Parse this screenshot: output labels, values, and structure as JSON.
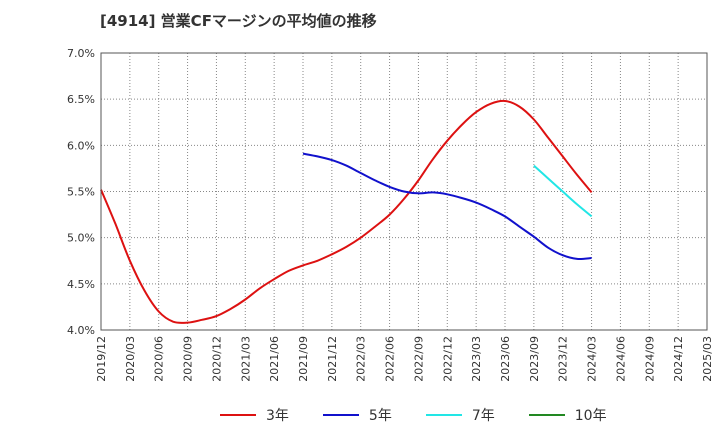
{
  "chart_data": {
    "type": "line",
    "title": "[4914]  営業CFマージンの平均値の推移",
    "x": [
      "2019/12",
      "2020/03",
      "2020/06",
      "2020/09",
      "2020/12",
      "2021/03",
      "2021/06",
      "2021/09",
      "2021/12",
      "2022/03",
      "2022/06",
      "2022/09",
      "2022/12",
      "2023/03",
      "2023/06",
      "2023/09",
      "2023/12",
      "2024/03",
      "2024/06",
      "2024/09",
      "2024/12",
      "2025/03"
    ],
    "y_ticks": [
      "4.0%",
      "4.5%",
      "5.0%",
      "5.5%",
      "6.0%",
      "6.5%",
      "7.0%"
    ],
    "ylim": [
      4.0,
      7.0
    ],
    "grid": true,
    "legend_position": "bottom",
    "series": [
      {
        "name": "3年",
        "color": "#dd1111",
        "points": [
          [
            0,
            5.52
          ],
          [
            0.5,
            5.15
          ],
          [
            1,
            4.75
          ],
          [
            1.5,
            4.43
          ],
          [
            2,
            4.2
          ],
          [
            2.5,
            4.09
          ],
          [
            3,
            4.08
          ],
          [
            3.5,
            4.11
          ],
          [
            4,
            4.15
          ],
          [
            4.5,
            4.23
          ],
          [
            5,
            4.33
          ],
          [
            5.5,
            4.45
          ],
          [
            6,
            4.55
          ],
          [
            6.5,
            4.64
          ],
          [
            7,
            4.7
          ],
          [
            7.5,
            4.75
          ],
          [
            8,
            4.82
          ],
          [
            8.5,
            4.9
          ],
          [
            9,
            5.0
          ],
          [
            9.5,
            5.12
          ],
          [
            10,
            5.25
          ],
          [
            10.5,
            5.42
          ],
          [
            11,
            5.62
          ],
          [
            11.5,
            5.85
          ],
          [
            12,
            6.05
          ],
          [
            12.5,
            6.22
          ],
          [
            13,
            6.36
          ],
          [
            13.5,
            6.45
          ],
          [
            14,
            6.48
          ],
          [
            14.5,
            6.42
          ],
          [
            15,
            6.28
          ],
          [
            15.5,
            6.08
          ],
          [
            16,
            5.88
          ],
          [
            16.5,
            5.68
          ],
          [
            17,
            5.49
          ]
        ]
      },
      {
        "name": "5年",
        "color": "#1111cc",
        "points": [
          [
            7,
            5.91
          ],
          [
            7.5,
            5.88
          ],
          [
            8,
            5.84
          ],
          [
            8.5,
            5.78
          ],
          [
            9,
            5.7
          ],
          [
            9.5,
            5.62
          ],
          [
            10,
            5.55
          ],
          [
            10.5,
            5.5
          ],
          [
            11,
            5.48
          ],
          [
            11.5,
            5.49
          ],
          [
            12,
            5.47
          ],
          [
            12.5,
            5.43
          ],
          [
            13,
            5.38
          ],
          [
            13.5,
            5.31
          ],
          [
            14,
            5.23
          ],
          [
            14.5,
            5.12
          ],
          [
            15,
            5.01
          ],
          [
            15.5,
            4.89
          ],
          [
            16,
            4.81
          ],
          [
            16.5,
            4.77
          ],
          [
            17,
            4.78
          ]
        ]
      },
      {
        "name": "7年",
        "color": "#22e6e6",
        "points": [
          [
            15,
            5.78
          ],
          [
            15.5,
            5.64
          ],
          [
            16,
            5.5
          ],
          [
            16.5,
            5.36
          ],
          [
            17,
            5.23
          ]
        ]
      },
      {
        "name": "10年",
        "color": "#228822",
        "points": []
      }
    ]
  }
}
